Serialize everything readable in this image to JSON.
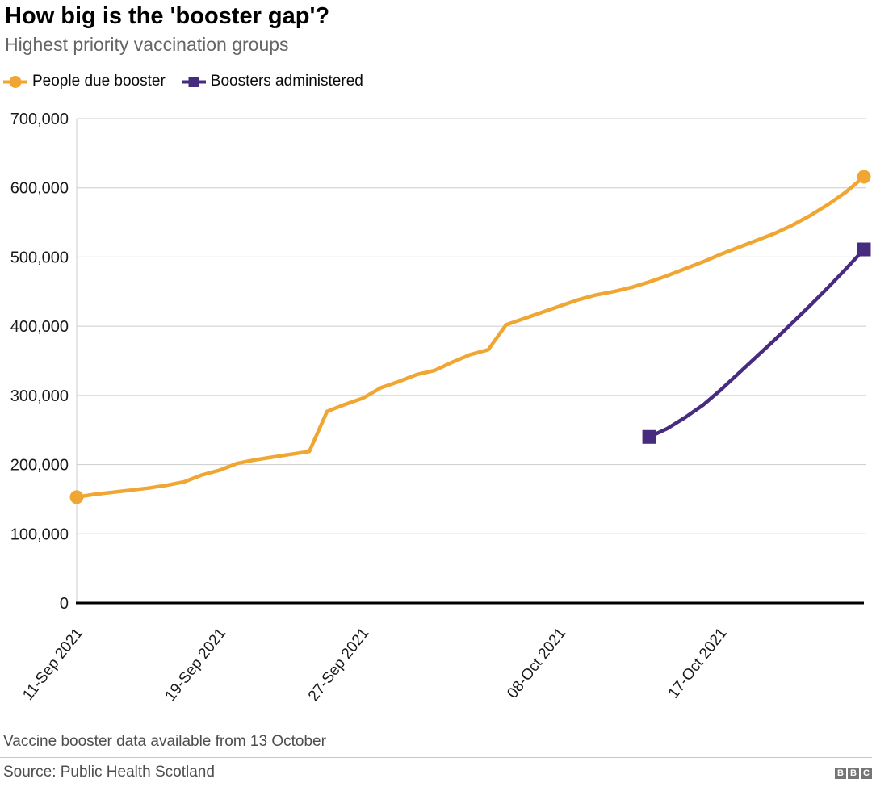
{
  "header": {
    "title": "How big is the 'booster gap'?",
    "subtitle": "Highest priority vaccination groups"
  },
  "footnote": "Vaccine booster data available from 13 October",
  "source": "Source: Public Health Scotland",
  "logo": {
    "letters": [
      "B",
      "B",
      "C"
    ]
  },
  "colors": {
    "people_due_booster": "#F0A632",
    "boosters_administered": "#472B7E",
    "gridline": "#CCCCCC",
    "axis": "#000000",
    "subtitle_text": "#666666",
    "footer_text": "#4D4D4D",
    "bbc_block": "#757575"
  },
  "chart_data": {
    "type": "line",
    "title": "How big is the 'booster gap'?",
    "subtitle": "Highest priority vaccination groups",
    "x_unit": "date (days since 11-Sep-2021)",
    "x_start": "11-Sep 2021",
    "x_end": "25-Oct 2021",
    "x_domain_days": [
      0,
      44
    ],
    "ylim": [
      0,
      700000
    ],
    "grid": "horizontal",
    "legend_position": "top-left",
    "ytick_values": [
      0,
      100000,
      200000,
      300000,
      400000,
      500000,
      600000,
      700000
    ],
    "ytick_labels": [
      "0",
      "100,000",
      "200,000",
      "300,000",
      "400,000",
      "500,000",
      "600,000",
      "700,000"
    ],
    "xticks": [
      {
        "day": 0,
        "label": "11-Sep 2021"
      },
      {
        "day": 8,
        "label": "19-Sep 2021"
      },
      {
        "day": 16,
        "label": "27-Sep 2021"
      },
      {
        "day": 27,
        "label": "08-Oct 2021"
      },
      {
        "day": 36,
        "label": "17-Oct 2021"
      }
    ],
    "series": [
      {
        "name": "People due booster",
        "color": "#F0A632",
        "marker": "circle",
        "start_day": 0,
        "values": [
          153000,
          157000,
          160000,
          163000,
          166000,
          170000,
          175000,
          185000,
          192000,
          202000,
          207000,
          211000,
          215000,
          219000,
          277000,
          287000,
          296000,
          311000,
          320000,
          330000,
          336000,
          348000,
          359000,
          366000,
          402000,
          411000,
          420000,
          429000,
          438000,
          445000,
          450000,
          456000,
          464000,
          473000,
          483000,
          493000,
          504000,
          514000,
          524000,
          534000,
          546000,
          560000,
          576000,
          594000,
          616000
        ]
      },
      {
        "name": "Boosters administered",
        "color": "#472B7E",
        "marker": "square",
        "start_day": 32,
        "values": [
          240000,
          252000,
          268000,
          286000,
          308000,
          332000,
          356000,
          380000,
          405000,
          430000,
          456000,
          483000,
          511000
        ]
      }
    ]
  }
}
